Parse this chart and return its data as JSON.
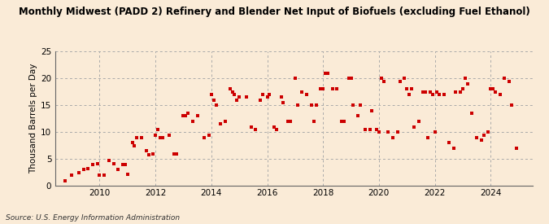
{
  "title": "Monthly Midwest (PADD 2) Refinery and Blender Net Input of Biofuels (excluding Fuel Ethanol)",
  "ylabel": "Thousand Barrels per Day",
  "source": "Source: U.S. Energy Information Administration",
  "background_color": "#faebd7",
  "dot_color": "#cc0000",
  "dot_size": 8,
  "xlim": [
    2008.4,
    2025.5
  ],
  "ylim": [
    0,
    25
  ],
  "yticks": [
    0,
    5,
    10,
    15,
    20,
    25
  ],
  "xticks": [
    2010,
    2012,
    2014,
    2016,
    2018,
    2020,
    2022,
    2024
  ],
  "data": [
    [
      2008.75,
      1.0
    ],
    [
      2009.0,
      2.0
    ],
    [
      2009.25,
      2.5
    ],
    [
      2009.42,
      3.0
    ],
    [
      2009.58,
      3.2
    ],
    [
      2009.75,
      4.0
    ],
    [
      2009.92,
      4.2
    ],
    [
      2010.0,
      2.0
    ],
    [
      2010.17,
      2.0
    ],
    [
      2010.33,
      4.8
    ],
    [
      2010.5,
      4.2
    ],
    [
      2010.67,
      3.0
    ],
    [
      2010.83,
      4.0
    ],
    [
      2010.92,
      4.0
    ],
    [
      2011.0,
      2.2
    ],
    [
      2011.17,
      8.0
    ],
    [
      2011.25,
      7.5
    ],
    [
      2011.33,
      9.0
    ],
    [
      2011.5,
      9.0
    ],
    [
      2011.67,
      6.5
    ],
    [
      2011.75,
      5.8
    ],
    [
      2011.92,
      6.0
    ],
    [
      2012.0,
      9.5
    ],
    [
      2012.08,
      10.5
    ],
    [
      2012.17,
      9.0
    ],
    [
      2012.25,
      9.0
    ],
    [
      2012.5,
      9.5
    ],
    [
      2012.67,
      6.0
    ],
    [
      2012.75,
      6.0
    ],
    [
      2013.0,
      13.0
    ],
    [
      2013.08,
      13.0
    ],
    [
      2013.17,
      13.5
    ],
    [
      2013.33,
      12.0
    ],
    [
      2013.5,
      13.0
    ],
    [
      2013.75,
      9.0
    ],
    [
      2013.92,
      9.5
    ],
    [
      2014.0,
      17.0
    ],
    [
      2014.08,
      16.0
    ],
    [
      2014.17,
      15.0
    ],
    [
      2014.33,
      11.5
    ],
    [
      2014.5,
      12.0
    ],
    [
      2014.67,
      18.0
    ],
    [
      2014.75,
      17.5
    ],
    [
      2014.83,
      17.0
    ],
    [
      2014.92,
      16.0
    ],
    [
      2015.0,
      16.5
    ],
    [
      2015.25,
      16.5
    ],
    [
      2015.42,
      11.0
    ],
    [
      2015.58,
      10.5
    ],
    [
      2015.75,
      16.0
    ],
    [
      2015.83,
      17.0
    ],
    [
      2016.0,
      16.5
    ],
    [
      2016.08,
      17.0
    ],
    [
      2016.25,
      11.0
    ],
    [
      2016.33,
      10.5
    ],
    [
      2016.5,
      16.5
    ],
    [
      2016.58,
      15.5
    ],
    [
      2016.75,
      12.0
    ],
    [
      2016.83,
      12.0
    ],
    [
      2017.0,
      20.0
    ],
    [
      2017.08,
      15.0
    ],
    [
      2017.25,
      17.5
    ],
    [
      2017.42,
      17.0
    ],
    [
      2017.58,
      15.0
    ],
    [
      2017.67,
      12.0
    ],
    [
      2017.75,
      15.0
    ],
    [
      2017.92,
      18.0
    ],
    [
      2018.0,
      18.0
    ],
    [
      2018.08,
      21.0
    ],
    [
      2018.17,
      21.0
    ],
    [
      2018.33,
      18.0
    ],
    [
      2018.5,
      18.0
    ],
    [
      2018.67,
      12.0
    ],
    [
      2018.75,
      12.0
    ],
    [
      2018.92,
      20.0
    ],
    [
      2019.0,
      20.0
    ],
    [
      2019.08,
      15.0
    ],
    [
      2019.25,
      13.0
    ],
    [
      2019.33,
      15.0
    ],
    [
      2019.5,
      10.5
    ],
    [
      2019.67,
      10.5
    ],
    [
      2019.75,
      14.0
    ],
    [
      2019.92,
      10.5
    ],
    [
      2020.0,
      10.0
    ],
    [
      2020.08,
      20.0
    ],
    [
      2020.17,
      19.5
    ],
    [
      2020.33,
      10.0
    ],
    [
      2020.5,
      9.0
    ],
    [
      2020.67,
      10.0
    ],
    [
      2020.75,
      19.5
    ],
    [
      2020.92,
      20.0
    ],
    [
      2021.0,
      18.0
    ],
    [
      2021.08,
      17.0
    ],
    [
      2021.17,
      18.0
    ],
    [
      2021.25,
      11.0
    ],
    [
      2021.42,
      12.0
    ],
    [
      2021.58,
      17.5
    ],
    [
      2021.67,
      17.5
    ],
    [
      2021.75,
      9.0
    ],
    [
      2021.83,
      17.5
    ],
    [
      2021.92,
      17.0
    ],
    [
      2022.0,
      10.0
    ],
    [
      2022.08,
      17.5
    ],
    [
      2022.17,
      17.0
    ],
    [
      2022.33,
      17.0
    ],
    [
      2022.5,
      8.0
    ],
    [
      2022.67,
      7.0
    ],
    [
      2022.75,
      17.5
    ],
    [
      2022.92,
      17.5
    ],
    [
      2023.0,
      18.0
    ],
    [
      2023.08,
      20.0
    ],
    [
      2023.17,
      19.0
    ],
    [
      2023.33,
      13.5
    ],
    [
      2023.5,
      9.0
    ],
    [
      2023.67,
      8.5
    ],
    [
      2023.75,
      9.5
    ],
    [
      2023.92,
      10.0
    ],
    [
      2024.0,
      18.0
    ],
    [
      2024.08,
      18.0
    ],
    [
      2024.17,
      17.5
    ],
    [
      2024.33,
      17.0
    ],
    [
      2024.5,
      20.0
    ],
    [
      2024.67,
      19.5
    ],
    [
      2024.75,
      15.0
    ],
    [
      2024.92,
      7.0
    ]
  ]
}
